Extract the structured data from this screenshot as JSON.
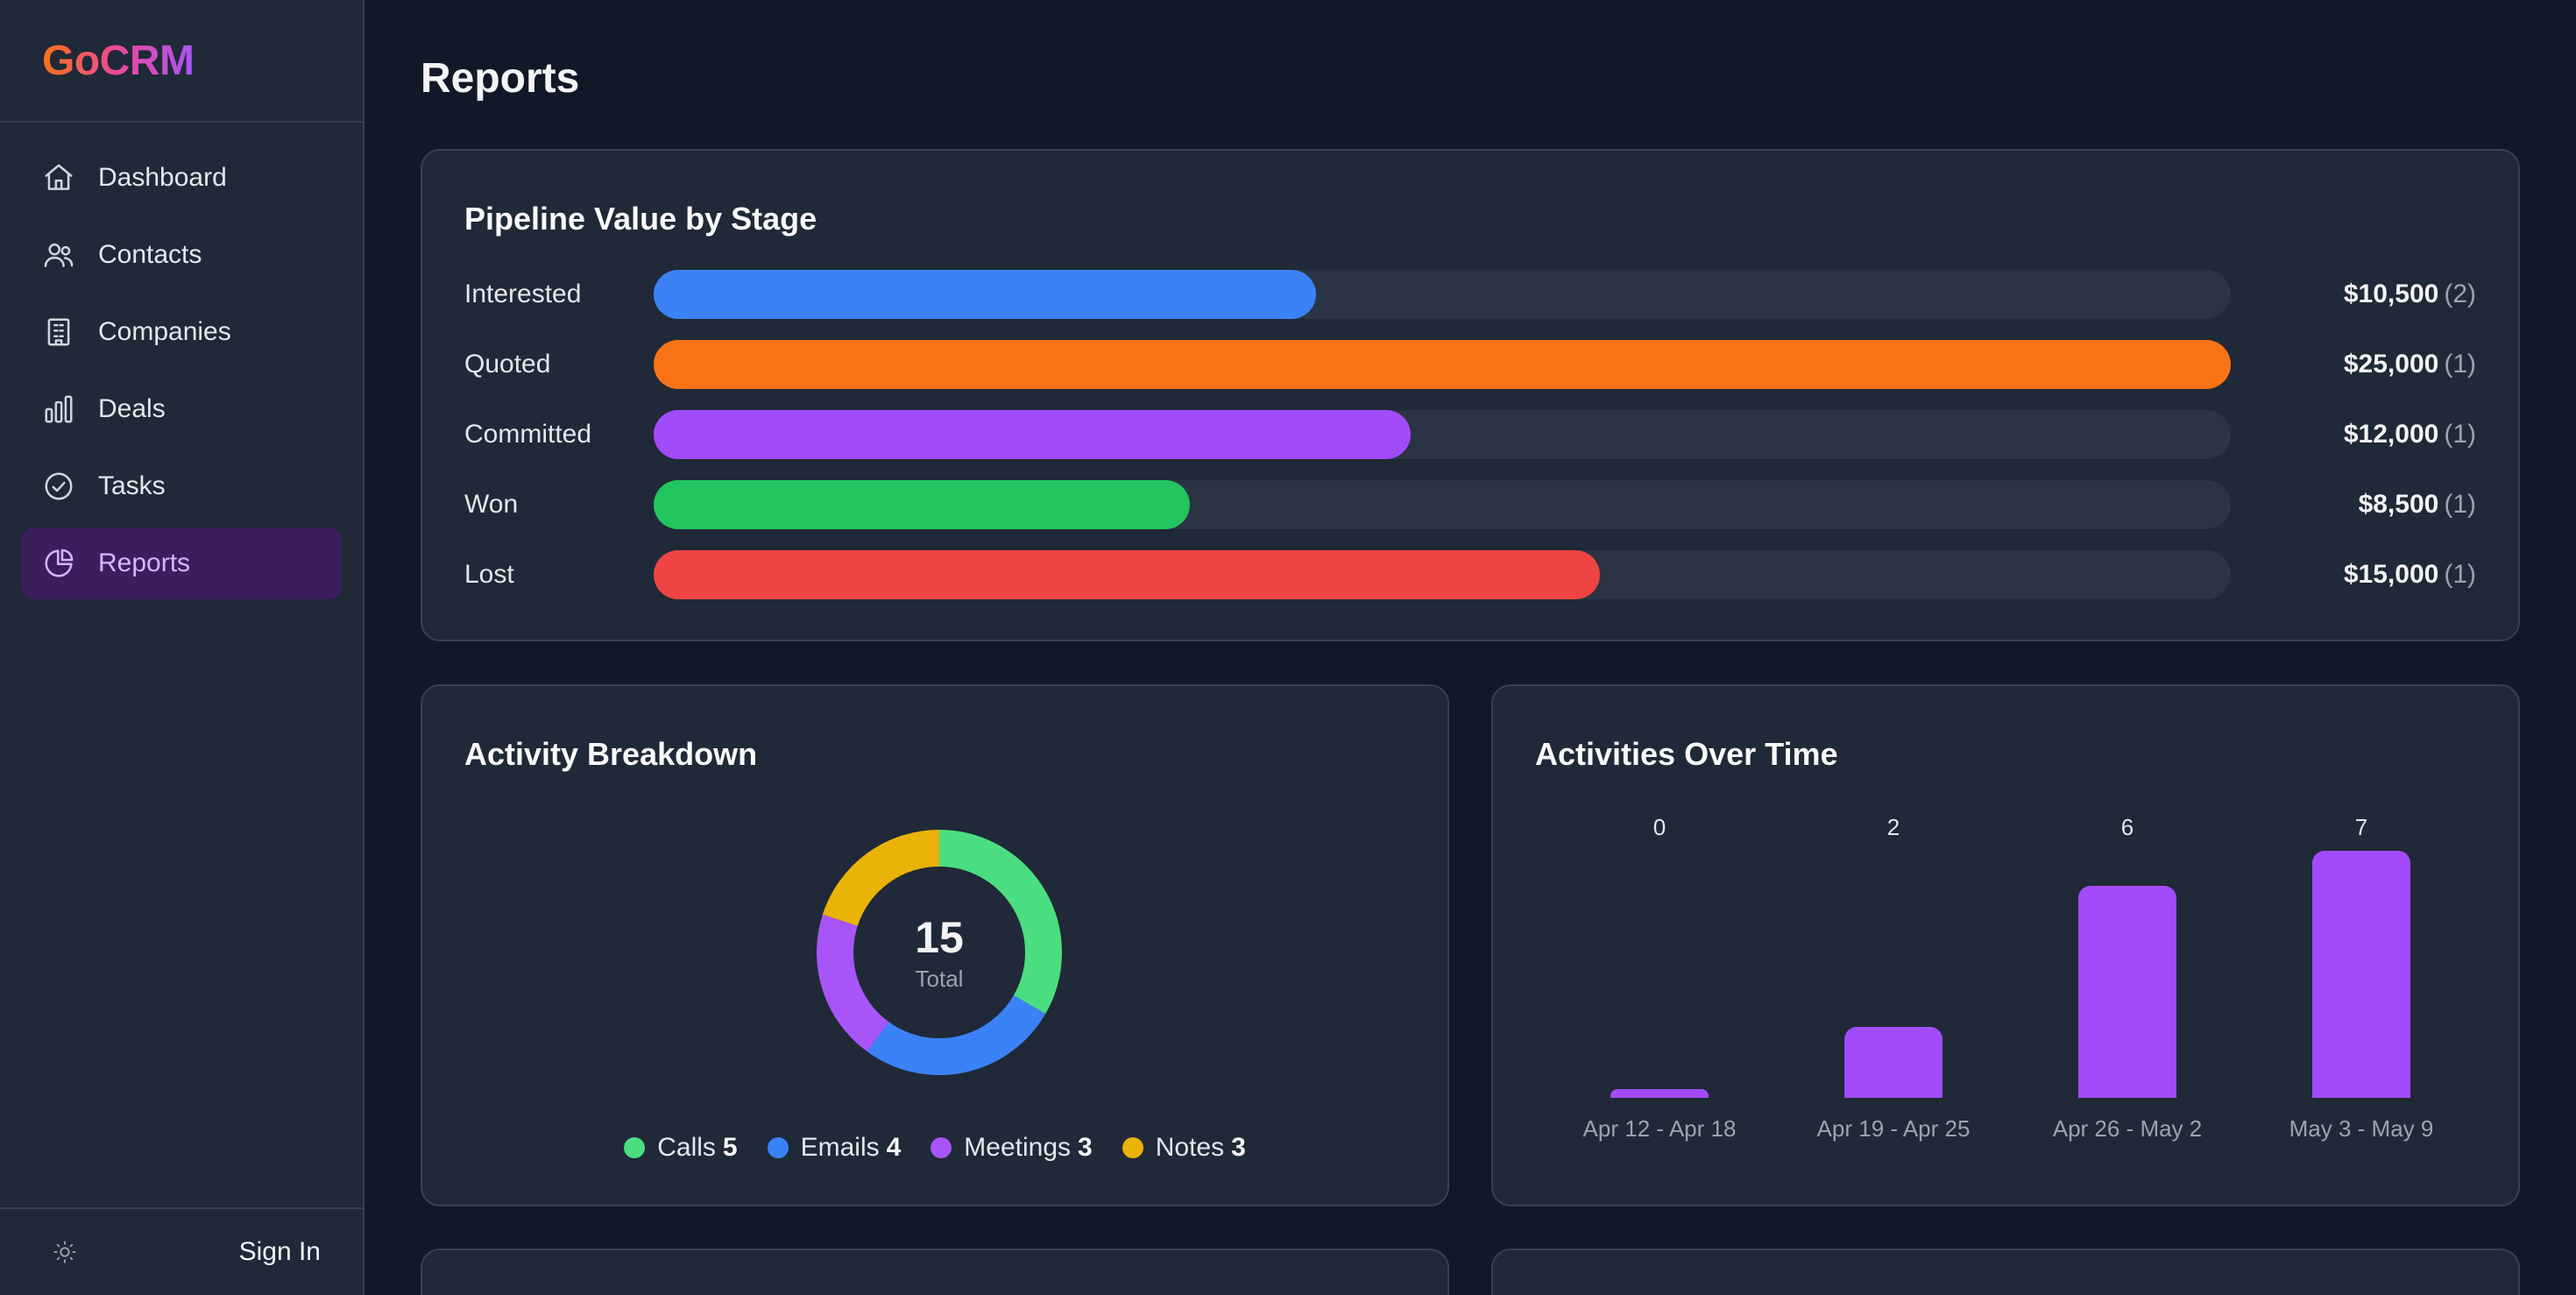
{
  "brand": {
    "name": "GoCRM"
  },
  "sidebar": {
    "items": [
      {
        "label": "Dashboard",
        "icon": "home-icon",
        "active": false
      },
      {
        "label": "Contacts",
        "icon": "users-icon",
        "active": false
      },
      {
        "label": "Companies",
        "icon": "building-icon",
        "active": false
      },
      {
        "label": "Deals",
        "icon": "bar-chart-icon",
        "active": false
      },
      {
        "label": "Tasks",
        "icon": "check-circle-icon",
        "active": false
      },
      {
        "label": "Reports",
        "icon": "pie-chart-icon",
        "active": true
      }
    ],
    "footer": {
      "theme_icon": "sun-icon",
      "signin_label": "Sign In"
    }
  },
  "page": {
    "title": "Reports"
  },
  "pipeline": {
    "title": "Pipeline Value by Stage",
    "max_value": 25000,
    "stages": [
      {
        "label": "Interested",
        "value": 10500,
        "value_text": "$10,500",
        "count_text": "(2)",
        "color": "#3b82f6"
      },
      {
        "label": "Quoted",
        "value": 25000,
        "value_text": "$25,000",
        "count_text": "(1)",
        "color": "#f97316"
      },
      {
        "label": "Committed",
        "value": 12000,
        "value_text": "$12,000",
        "count_text": "(1)",
        "color": "#a24bfa"
      },
      {
        "label": "Won",
        "value": 8500,
        "value_text": "$8,500",
        "count_text": "(1)",
        "color": "#22c55e"
      },
      {
        "label": "Lost",
        "value": 15000,
        "value_text": "$15,000",
        "count_text": "(1)",
        "color": "#ef4444"
      }
    ]
  },
  "breakdown": {
    "title": "Activity Breakdown",
    "total": "15",
    "total_label": "Total",
    "legend": [
      {
        "label": "Calls",
        "value": "5",
        "color": "#4ade80"
      },
      {
        "label": "Emails",
        "value": "4",
        "color": "#3b82f6"
      },
      {
        "label": "Meetings",
        "value": "3",
        "color": "#a855f7"
      },
      {
        "label": "Notes",
        "value": "3",
        "color": "#eab308"
      }
    ]
  },
  "chart_data": [
    {
      "type": "bar",
      "title": "Pipeline Value by Stage",
      "orientation": "horizontal",
      "categories": [
        "Interested",
        "Quoted",
        "Committed",
        "Won",
        "Lost"
      ],
      "values": [
        10500,
        25000,
        12000,
        8500,
        15000
      ],
      "counts": [
        2,
        1,
        1,
        1,
        1
      ]
    },
    {
      "type": "pie",
      "title": "Activity Breakdown",
      "donut": true,
      "categories": [
        "Calls",
        "Emails",
        "Meetings",
        "Notes"
      ],
      "values": [
        5,
        4,
        3,
        3
      ],
      "colors": [
        "#4ade80",
        "#3b82f6",
        "#a855f7",
        "#eab308"
      ]
    },
    {
      "type": "bar",
      "title": "Activities Over Time",
      "categories": [
        "Apr 12 - Apr 18",
        "Apr 19 - Apr 25",
        "Apr 26 - May 2",
        "May 3 - May 9"
      ],
      "values": [
        0,
        2,
        6,
        7
      ],
      "color": "#a24bfa"
    }
  ],
  "overtime": {
    "title": "Activities Over Time"
  }
}
